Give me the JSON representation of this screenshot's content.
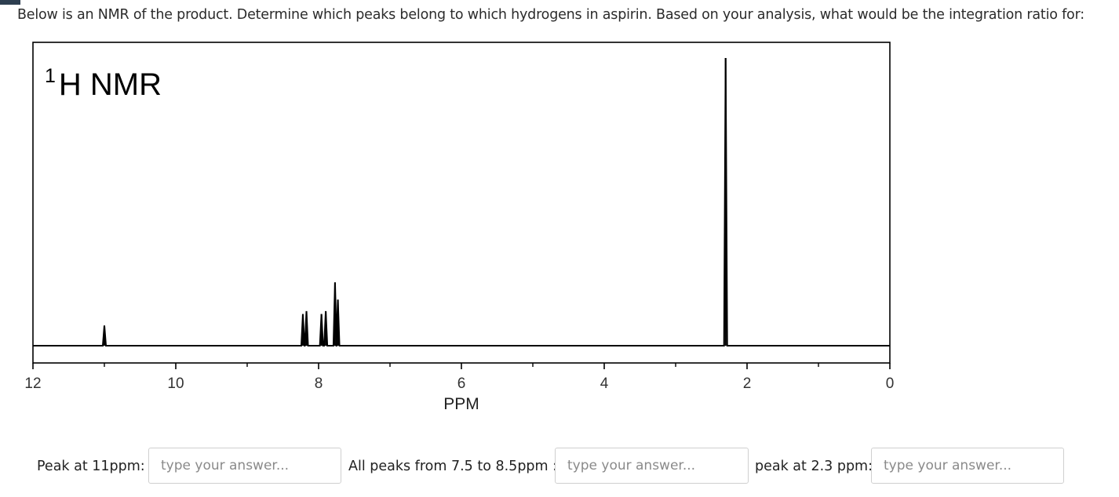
{
  "question": {
    "text": "Below is an NMR of the product.  Determine which peaks belong to which hydrogens in aspirin.  Based on your analysis, what would be the integration ratio for:"
  },
  "chart_data": {
    "type": "line",
    "title_sup": "1",
    "title_main": "H NMR",
    "xlabel": "PPM",
    "xlim": [
      12,
      0
    ],
    "x_reversed": true,
    "major_ticks": [
      12,
      10,
      8,
      6,
      4,
      2,
      0
    ],
    "minor_ticks": [
      11,
      9,
      7,
      5,
      3,
      1
    ],
    "tick_labels": [
      "12",
      "10",
      "8",
      "6",
      "4",
      "2",
      "0"
    ],
    "baseline_intensity": 0,
    "ylim": [
      0,
      1
    ],
    "peaks": [
      {
        "ppm": 11.0,
        "intensity": 0.07
      },
      {
        "ppm": 8.22,
        "intensity": 0.11
      },
      {
        "ppm": 8.17,
        "intensity": 0.12
      },
      {
        "ppm": 7.96,
        "intensity": 0.11
      },
      {
        "ppm": 7.9,
        "intensity": 0.12
      },
      {
        "ppm": 7.77,
        "intensity": 0.22
      },
      {
        "ppm": 7.73,
        "intensity": 0.16
      },
      {
        "ppm": 2.3,
        "intensity": 1.0
      }
    ],
    "grid": false,
    "line_color": "#000000"
  },
  "answers": [
    {
      "label": "Peak at 11ppm:",
      "placeholder": "type your answer...",
      "value": ""
    },
    {
      "label": "All peaks from 7.5 to 8.5ppm :",
      "placeholder": "type your answer...",
      "value": ""
    },
    {
      "label": "peak at 2.3 ppm:",
      "placeholder": "type your answer...",
      "value": ""
    }
  ]
}
